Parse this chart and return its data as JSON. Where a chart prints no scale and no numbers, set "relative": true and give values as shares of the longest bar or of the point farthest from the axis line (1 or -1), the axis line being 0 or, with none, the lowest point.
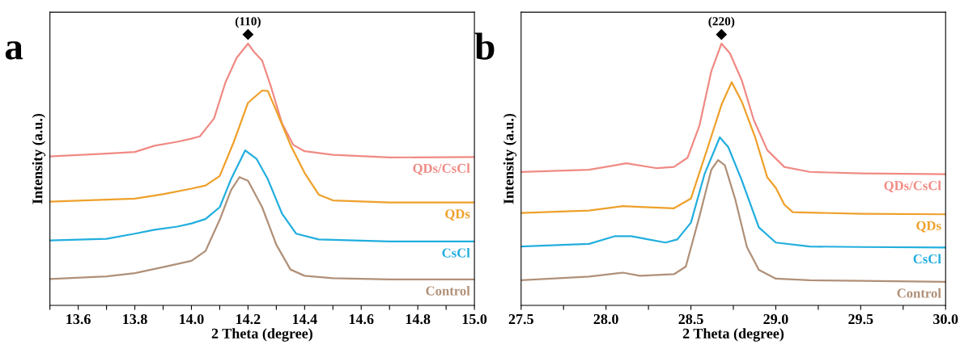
{
  "chart_data": [
    {
      "type": "line",
      "relative": true,
      "xlabel": "2 Theta (degree)",
      "ylabel": "Intensity (a.u.)",
      "xlim": [
        13.5,
        15.0
      ],
      "xticks": [
        {
          "value": 13.5,
          "label": null
        },
        13.6,
        {
          "value": 13.7,
          "label": null
        },
        13.8,
        {
          "value": 13.9,
          "label": null
        },
        {
          "value": 14.0,
          "label": "14.0"
        },
        {
          "value": 14.1,
          "label": null
        },
        14.2,
        {
          "value": 14.3,
          "label": null
        },
        14.4,
        {
          "value": 14.5,
          "label": null
        },
        14.6,
        {
          "value": 14.7,
          "label": null
        },
        14.8,
        {
          "value": 14.9,
          "label": null
        },
        {
          "value": 15.0,
          "label": "15.0"
        }
      ],
      "tick_labels": "x",
      "grid": false,
      "legend": false,
      "marker": "none",
      "line_style": "solid",
      "annotations": [
        "a",
        "(110)"
      ],
      "series": [
        {
          "name": "QDs/CsCl",
          "color": "#f08a84",
          "x": [
            13.5,
            13.7,
            13.8,
            13.87,
            13.95,
            14.0,
            14.03,
            14.08,
            14.12,
            14.16,
            14.2,
            14.22,
            14.25,
            14.28,
            14.32,
            14.36,
            14.4,
            14.5,
            14.7,
            15.0
          ],
          "values": [
            0.569,
            0.58,
            0.586,
            0.61,
            0.625,
            0.637,
            0.646,
            0.714,
            0.851,
            0.946,
            1.0,
            0.97,
            0.935,
            0.839,
            0.696,
            0.613,
            0.589,
            0.575,
            0.565,
            0.567
          ]
        },
        {
          "name": "QDs",
          "color": "#eea02a",
          "x": [
            13.5,
            13.8,
            13.9,
            14.0,
            14.05,
            14.1,
            14.15,
            14.2,
            14.25,
            14.27,
            14.3,
            14.35,
            14.4,
            14.45,
            14.5,
            14.7,
            15.0
          ],
          "values": [
            0.396,
            0.408,
            0.425,
            0.446,
            0.458,
            0.494,
            0.625,
            0.774,
            0.821,
            0.819,
            0.744,
            0.613,
            0.506,
            0.423,
            0.401,
            0.393,
            0.393
          ]
        },
        {
          "name": "CsCl",
          "color": "#22aede",
          "x": [
            13.5,
            13.7,
            13.8,
            13.87,
            13.95,
            14.0,
            14.05,
            14.1,
            14.14,
            14.19,
            14.23,
            14.27,
            14.32,
            14.37,
            14.45,
            14.7,
            15.0
          ],
          "values": [
            0.248,
            0.254,
            0.274,
            0.289,
            0.301,
            0.313,
            0.33,
            0.375,
            0.482,
            0.592,
            0.56,
            0.482,
            0.351,
            0.274,
            0.252,
            0.244,
            0.244
          ]
        },
        {
          "name": "Control",
          "color": "#b09078",
          "x": [
            13.5,
            13.7,
            13.8,
            13.9,
            14.0,
            14.05,
            14.1,
            14.14,
            14.17,
            14.2,
            14.25,
            14.3,
            14.35,
            14.4,
            14.5,
            14.7,
            15.0
          ],
          "values": [
            0.101,
            0.111,
            0.123,
            0.146,
            0.17,
            0.208,
            0.327,
            0.44,
            0.49,
            0.476,
            0.375,
            0.232,
            0.137,
            0.113,
            0.104,
            0.099,
            0.099
          ]
        }
      ]
    },
    {
      "type": "line",
      "relative": true,
      "xlabel": "2 Theta (degree)",
      "ylabel": "Intensity (a.u.)",
      "xlim": [
        27.5,
        30.0
      ],
      "xticks": [
        27.5,
        {
          "value": 27.75,
          "label": null
        },
        {
          "value": 28.0,
          "label": "28.0"
        },
        {
          "value": 28.25,
          "label": null
        },
        28.5,
        {
          "value": 28.75,
          "label": null
        },
        {
          "value": 29.0,
          "label": "29.0"
        },
        {
          "value": 29.25,
          "label": null
        },
        29.5,
        {
          "value": 29.75,
          "label": null
        },
        {
          "value": 30.0,
          "label": "30.0"
        }
      ],
      "tick_labels": "x",
      "grid": false,
      "legend": false,
      "marker": "none",
      "line_style": "solid",
      "annotations": [
        "b",
        "(220)"
      ],
      "series": [
        {
          "name": "QDs/CsCl",
          "color": "#f08a84",
          "x": [
            27.5,
            27.9,
            28.12,
            28.3,
            28.4,
            28.48,
            28.55,
            28.62,
            28.68,
            28.73,
            28.8,
            28.87,
            28.95,
            29.05,
            29.2,
            29.5,
            30.0
          ],
          "values": [
            0.51,
            0.518,
            0.543,
            0.524,
            0.529,
            0.564,
            0.686,
            0.894,
            1.0,
            0.963,
            0.859,
            0.709,
            0.593,
            0.529,
            0.51,
            0.504,
            0.501
          ]
        },
        {
          "name": "QDs",
          "color": "#eea02a",
          "x": [
            27.5,
            27.9,
            28.1,
            28.2,
            28.4,
            28.5,
            28.6,
            28.68,
            28.74,
            28.8,
            28.88,
            28.95,
            29.0,
            29.05,
            29.1,
            29.5,
            30.0
          ],
          "values": [
            0.353,
            0.362,
            0.379,
            0.376,
            0.371,
            0.408,
            0.605,
            0.766,
            0.853,
            0.778,
            0.639,
            0.489,
            0.449,
            0.385,
            0.356,
            0.35,
            0.348
          ]
        },
        {
          "name": "CsCl",
          "color": "#22aede",
          "x": [
            27.5,
            27.9,
            28.05,
            28.15,
            28.25,
            28.35,
            28.42,
            28.5,
            28.58,
            28.67,
            28.72,
            28.8,
            28.9,
            29.0,
            29.2,
            29.5,
            30.0
          ],
          "values": [
            0.225,
            0.235,
            0.264,
            0.264,
            0.252,
            0.24,
            0.252,
            0.316,
            0.501,
            0.642,
            0.605,
            0.477,
            0.298,
            0.24,
            0.225,
            0.223,
            0.221
          ]
        },
        {
          "name": "Control",
          "color": "#b09078",
          "x": [
            27.5,
            27.9,
            28.1,
            28.2,
            28.4,
            28.47,
            28.55,
            28.62,
            28.66,
            28.7,
            28.76,
            28.83,
            28.9,
            29.0,
            29.2,
            29.5,
            30.0
          ],
          "values": [
            0.096,
            0.11,
            0.125,
            0.113,
            0.119,
            0.148,
            0.339,
            0.518,
            0.555,
            0.535,
            0.408,
            0.223,
            0.136,
            0.102,
            0.096,
            0.094,
            0.09
          ]
        }
      ]
    }
  ]
}
